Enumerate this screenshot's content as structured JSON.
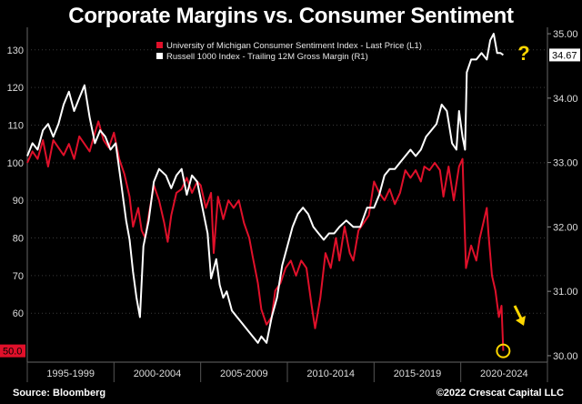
{
  "title": "Corporate Margins vs. Consumer Sentiment",
  "footer": {
    "source": "Source: Bloomberg",
    "credit": "©2022 Crescat Capital LLC"
  },
  "chart_data": {
    "type": "line",
    "legend": {
      "placement": "top-center",
      "entries": [
        {
          "name": "University of Michigan Consumer Sentiment Index - Last Price (L1)",
          "color": "#e0102a"
        },
        {
          "name": "Russell 1000 Index - Trailing 12M Gross Margin (R1)",
          "color": "#ffffff"
        }
      ]
    },
    "x_labels": [
      "1995-1999",
      "2000-2004",
      "2005-2009",
      "2010-2014",
      "2015-2019",
      "2020-2024"
    ],
    "x_range": [
      1995,
      2025
    ],
    "y_left": {
      "range": [
        47,
        136
      ],
      "ticks": [
        60,
        70,
        80,
        90,
        100,
        110,
        120,
        130
      ],
      "last_value_label": "50.0",
      "last_value": 50.0
    },
    "y_right": {
      "range": [
        29.9,
        35.1
      ],
      "ticks": [
        "30.00",
        "31.00",
        "32.00",
        "33.00",
        "34.00",
        "35.00"
      ],
      "last_value_label": "34.67",
      "last_value": 34.67
    },
    "annotations": [
      {
        "text": "?",
        "color": "#ffd700"
      },
      {
        "text": "down-arrow",
        "color": "#ffd700"
      },
      {
        "text": "circle-at-latest-sentiment",
        "color": "#ffd700"
      }
    ],
    "series": [
      {
        "name": "University of Michigan Consumer Sentiment Index - Last Price (L1)",
        "axis": "left",
        "color": "#e0102a",
        "points": [
          [
            1995.0,
            100
          ],
          [
            1995.3,
            103
          ],
          [
            1995.6,
            101
          ],
          [
            1995.9,
            106
          ],
          [
            1996.2,
            99
          ],
          [
            1996.5,
            106
          ],
          [
            1996.8,
            104
          ],
          [
            1997.1,
            102
          ],
          [
            1997.4,
            105
          ],
          [
            1997.7,
            101
          ],
          [
            1998.0,
            107
          ],
          [
            1998.3,
            105
          ],
          [
            1998.6,
            103
          ],
          [
            1998.9,
            108
          ],
          [
            1999.1,
            111
          ],
          [
            1999.4,
            106
          ],
          [
            1999.7,
            104
          ],
          [
            2000.0,
            108
          ],
          [
            2000.3,
            101
          ],
          [
            2000.6,
            97
          ],
          [
            2000.9,
            91
          ],
          [
            2001.1,
            83
          ],
          [
            2001.4,
            88
          ],
          [
            2001.6,
            82
          ],
          [
            2001.8,
            80
          ],
          [
            2002.0,
            86
          ],
          [
            2002.3,
            94
          ],
          [
            2002.6,
            90
          ],
          [
            2002.9,
            84
          ],
          [
            2003.1,
            79
          ],
          [
            2003.3,
            86
          ],
          [
            2003.6,
            92
          ],
          [
            2003.9,
            93
          ],
          [
            2004.2,
            96
          ],
          [
            2004.5,
            92
          ],
          [
            2004.8,
            95
          ],
          [
            2005.0,
            94
          ],
          [
            2005.3,
            88
          ],
          [
            2005.6,
            92
          ],
          [
            2005.75,
            76
          ],
          [
            2006.0,
            91
          ],
          [
            2006.3,
            85
          ],
          [
            2006.6,
            90
          ],
          [
            2006.9,
            88
          ],
          [
            2007.2,
            90
          ],
          [
            2007.5,
            84
          ],
          [
            2007.8,
            80
          ],
          [
            2008.0,
            75
          ],
          [
            2008.3,
            68
          ],
          [
            2008.5,
            61
          ],
          [
            2008.8,
            57
          ],
          [
            2009.1,
            59
          ],
          [
            2009.3,
            66
          ],
          [
            2009.6,
            68
          ],
          [
            2009.9,
            72
          ],
          [
            2010.2,
            74
          ],
          [
            2010.5,
            70
          ],
          [
            2010.8,
            74
          ],
          [
            2011.1,
            72
          ],
          [
            2011.4,
            62
          ],
          [
            2011.6,
            56
          ],
          [
            2011.9,
            64
          ],
          [
            2012.2,
            76
          ],
          [
            2012.5,
            72
          ],
          [
            2012.8,
            80
          ],
          [
            2013.0,
            74
          ],
          [
            2013.3,
            83
          ],
          [
            2013.6,
            76
          ],
          [
            2013.8,
            74
          ],
          [
            2014.1,
            82
          ],
          [
            2014.4,
            84
          ],
          [
            2014.7,
            86
          ],
          [
            2015.0,
            95
          ],
          [
            2015.3,
            92
          ],
          [
            2015.6,
            90
          ],
          [
            2015.9,
            93
          ],
          [
            2016.2,
            89
          ],
          [
            2016.5,
            92
          ],
          [
            2016.8,
            98
          ],
          [
            2017.1,
            96
          ],
          [
            2017.4,
            98
          ],
          [
            2017.7,
            95
          ],
          [
            2017.9,
            99
          ],
          [
            2018.2,
            98
          ],
          [
            2018.5,
            100
          ],
          [
            2018.8,
            98
          ],
          [
            2019.0,
            91
          ],
          [
            2019.3,
            99
          ],
          [
            2019.6,
            90
          ],
          [
            2019.9,
            99
          ],
          [
            2020.1,
            101
          ],
          [
            2020.3,
            72
          ],
          [
            2020.6,
            78
          ],
          [
            2020.9,
            74
          ],
          [
            2021.1,
            80
          ],
          [
            2021.3,
            84
          ],
          [
            2021.5,
            88
          ],
          [
            2021.6,
            81
          ],
          [
            2021.8,
            70
          ],
          [
            2022.0,
            66
          ],
          [
            2022.2,
            59
          ],
          [
            2022.35,
            62
          ],
          [
            2022.45,
            50
          ]
        ]
      },
      {
        "name": "Russell 1000 Index - Trailing 12M Gross Margin (R1)",
        "axis": "right",
        "color": "#ffffff",
        "points": [
          [
            1995.0,
            33.1
          ],
          [
            1995.3,
            33.3
          ],
          [
            1995.6,
            33.2
          ],
          [
            1995.9,
            33.5
          ],
          [
            1996.2,
            33.6
          ],
          [
            1996.5,
            33.4
          ],
          [
            1996.8,
            33.6
          ],
          [
            1997.1,
            33.9
          ],
          [
            1997.4,
            34.1
          ],
          [
            1997.7,
            33.8
          ],
          [
            1998.0,
            34.0
          ],
          [
            1998.3,
            34.2
          ],
          [
            1998.6,
            33.7
          ],
          [
            1998.9,
            33.3
          ],
          [
            1999.2,
            33.5
          ],
          [
            1999.5,
            33.4
          ],
          [
            1999.8,
            33.2
          ],
          [
            2000.1,
            33.3
          ],
          [
            2000.4,
            32.7
          ],
          [
            2000.7,
            32.1
          ],
          [
            2000.9,
            31.8
          ],
          [
            2001.1,
            31.3
          ],
          [
            2001.3,
            30.9
          ],
          [
            2001.5,
            30.6
          ],
          [
            2001.7,
            31.7
          ],
          [
            2002.0,
            32.1
          ],
          [
            2002.3,
            32.7
          ],
          [
            2002.6,
            32.9
          ],
          [
            2003.0,
            32.8
          ],
          [
            2003.3,
            32.6
          ],
          [
            2003.6,
            32.8
          ],
          [
            2003.9,
            32.9
          ],
          [
            2004.2,
            32.5
          ],
          [
            2004.5,
            32.8
          ],
          [
            2004.8,
            32.7
          ],
          [
            2005.1,
            32.3
          ],
          [
            2005.4,
            31.9
          ],
          [
            2005.6,
            31.2
          ],
          [
            2005.9,
            31.5
          ],
          [
            2006.1,
            31.1
          ],
          [
            2006.3,
            30.9
          ],
          [
            2006.5,
            31.0
          ],
          [
            2006.8,
            30.7
          ],
          [
            2007.1,
            30.6
          ],
          [
            2007.4,
            30.5
          ],
          [
            2007.7,
            30.4
          ],
          [
            2008.0,
            30.3
          ],
          [
            2008.3,
            30.2
          ],
          [
            2008.5,
            30.3
          ],
          [
            2008.8,
            30.2
          ],
          [
            2009.1,
            30.6
          ],
          [
            2009.4,
            30.9
          ],
          [
            2009.7,
            31.4
          ],
          [
            2010.0,
            31.7
          ],
          [
            2010.3,
            32.0
          ],
          [
            2010.6,
            32.2
          ],
          [
            2010.9,
            32.3
          ],
          [
            2011.2,
            32.2
          ],
          [
            2011.5,
            32.0
          ],
          [
            2011.8,
            31.9
          ],
          [
            2012.1,
            31.8
          ],
          [
            2012.4,
            31.9
          ],
          [
            2012.7,
            31.9
          ],
          [
            2013.0,
            32.0
          ],
          [
            2013.4,
            32.1
          ],
          [
            2013.8,
            32.0
          ],
          [
            2014.2,
            32.0
          ],
          [
            2014.6,
            32.3
          ],
          [
            2015.0,
            32.3
          ],
          [
            2015.3,
            32.5
          ],
          [
            2015.6,
            32.8
          ],
          [
            2015.9,
            32.9
          ],
          [
            2016.2,
            32.9
          ],
          [
            2016.5,
            33.0
          ],
          [
            2016.8,
            33.1
          ],
          [
            2017.1,
            33.2
          ],
          [
            2017.4,
            33.1
          ],
          [
            2017.7,
            33.2
          ],
          [
            2018.0,
            33.4
          ],
          [
            2018.3,
            33.5
          ],
          [
            2018.6,
            33.6
          ],
          [
            2018.9,
            33.9
          ],
          [
            2019.2,
            33.8
          ],
          [
            2019.5,
            33.3
          ],
          [
            2019.75,
            33.2
          ],
          [
            2019.9,
            33.8
          ],
          [
            2020.1,
            33.4
          ],
          [
            2020.25,
            33.2
          ],
          [
            2020.35,
            34.4
          ],
          [
            2020.6,
            34.6
          ],
          [
            2020.9,
            34.6
          ],
          [
            2021.2,
            34.7
          ],
          [
            2021.5,
            34.6
          ],
          [
            2021.7,
            34.9
          ],
          [
            2021.9,
            35.0
          ],
          [
            2022.1,
            34.7
          ],
          [
            2022.3,
            34.7
          ],
          [
            2022.45,
            34.67
          ]
        ]
      }
    ]
  }
}
